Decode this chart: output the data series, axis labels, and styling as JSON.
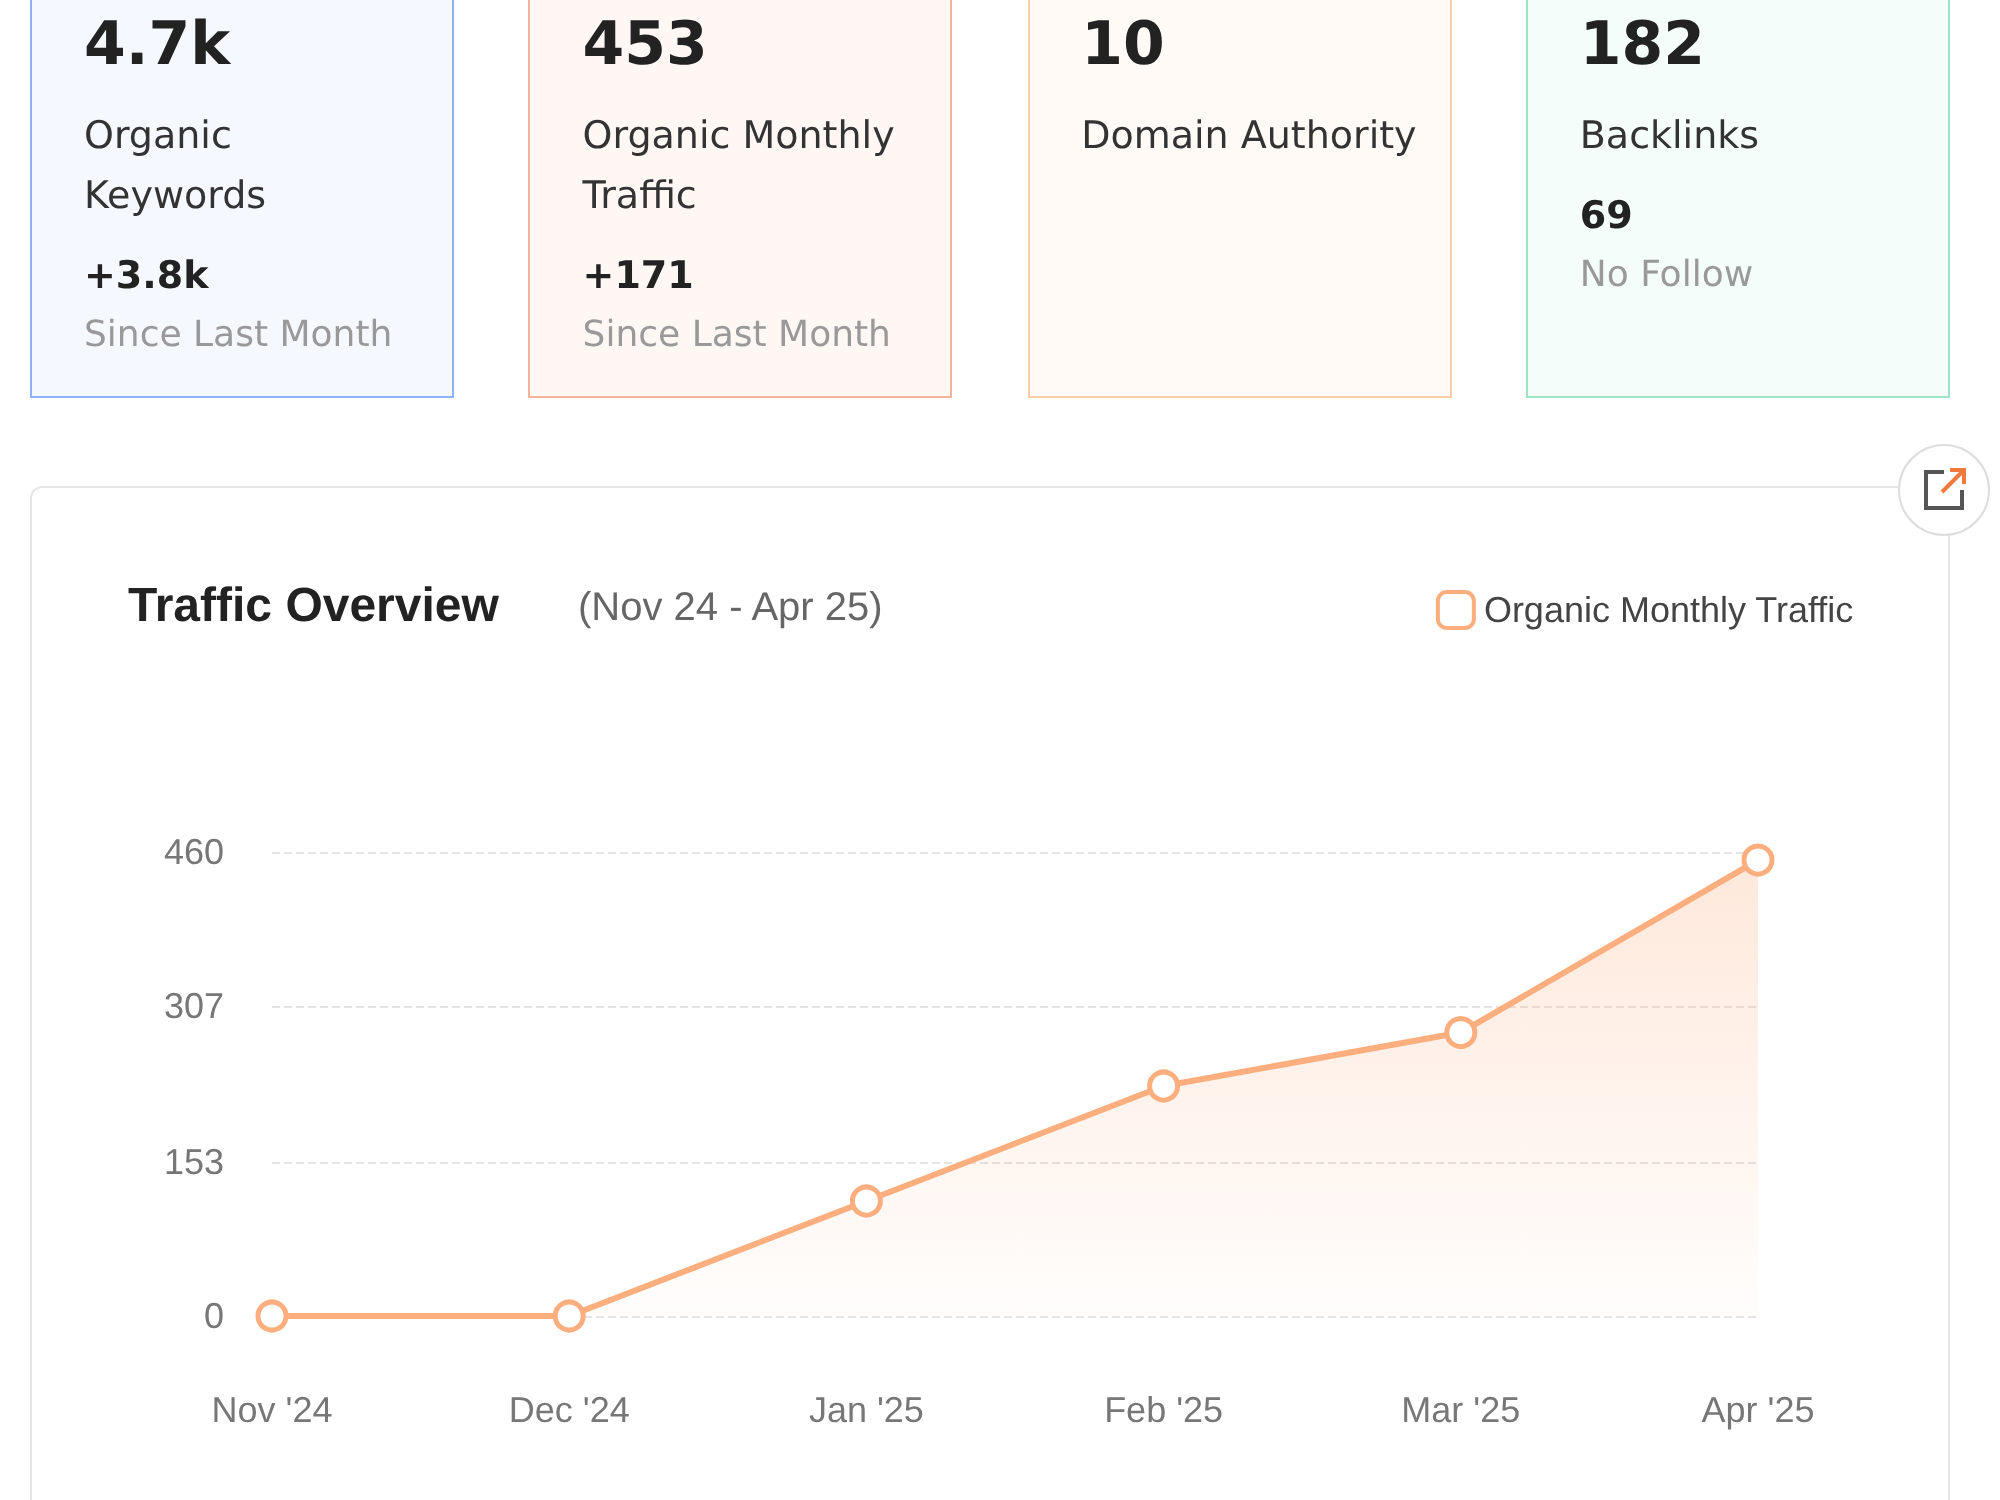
{
  "chart_data": [
    {
      "type": "other",
      "title": "4.7k",
      "subtitle": "Organic Keywords",
      "annotations": [
        "+3.8k",
        "Since Last Month"
      ]
    },
    {
      "type": "other",
      "title": "453",
      "subtitle": "Organic Monthly Traffic",
      "annotations": [
        "+171",
        "Since Last Month"
      ]
    },
    {
      "type": "other",
      "title": "10",
      "subtitle": "Domain Authority"
    },
    {
      "type": "other",
      "title": "182",
      "subtitle": "Backlinks",
      "annotations": [
        "69",
        "No Follow"
      ]
    },
    {
      "type": "area",
      "title": "Traffic Overview",
      "subtitle": "(Nov 24 - Apr 25)",
      "categories": [
        "Nov '24",
        "Dec '24",
        "Jan '25",
        "Feb '25",
        "Mar '25",
        "Apr '25"
      ],
      "series": [
        {
          "name": "Organic Monthly Traffic",
          "color": "#fdae7e",
          "values": [
            0,
            0,
            114,
            228,
            281,
            452
          ]
        }
      ],
      "ylim": [
        0,
        460
      ],
      "yticks": [
        0,
        153,
        307,
        460
      ],
      "grid": "y",
      "legend": "top right",
      "marker": "circle"
    }
  ]
}
